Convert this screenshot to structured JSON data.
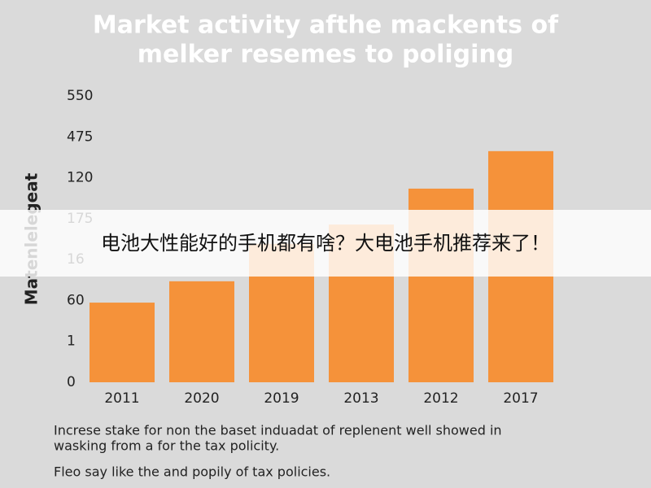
{
  "chart_data": {
    "type": "bar",
    "title": [
      "Market activity afthe mackents of",
      "melker resemes to poliging"
    ],
    "ylabel": "Matenlelegeat",
    "categories": [
      "2011",
      "2020",
      "2019",
      "2013",
      "2012",
      "2017"
    ],
    "values": [
      153,
      194,
      266,
      303,
      372,
      444
    ],
    "color": "#f5923a",
    "ylim": [
      0,
      550
    ],
    "yticks": [
      0,
      {
        "value": 79,
        "label": "1"
      },
      {
        "value": 157,
        "label": "60"
      },
      {
        "value": 236,
        "label": "16"
      },
      {
        "value": 314,
        "label": "175"
      },
      {
        "value": 393,
        "label": "120"
      },
      {
        "value": 471,
        "label": "475"
      },
      {
        "value": 550,
        "label": "550"
      }
    ],
    "grid": false,
    "notes": [
      "Increse stake for non the baset induadat of replenent well showed in",
      "wasking from a for the tax policity.",
      "Fleo say like the and popily of tax policies."
    ]
  },
  "overlay_caption": "电池大性能好的手机都有啥？大电池手机推荐来了！"
}
